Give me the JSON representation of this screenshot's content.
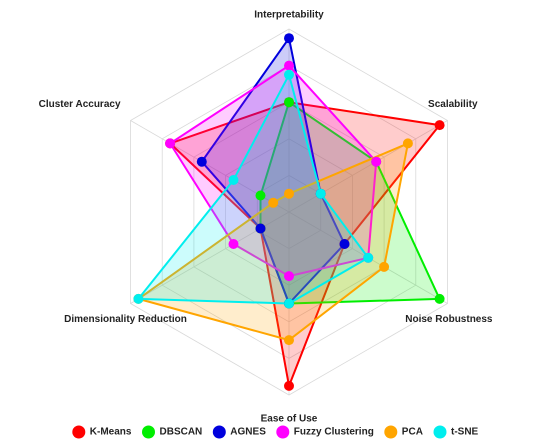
{
  "chart_data": {
    "type": "radar",
    "title": "",
    "axes": [
      "Interpretability",
      "Scalability",
      "Noise Robustness",
      "Ease of Use",
      "Dimensionality Reduction",
      "Cluster Accuracy"
    ],
    "range": [
      0,
      10
    ],
    "grid_rings": 5,
    "grid": true,
    "legend_position": "bottom",
    "series": [
      {
        "name": "K-Means",
        "color": "#ff0000",
        "values": [
          6.0,
          9.5,
          3.5,
          9.5,
          1.8,
          7.5
        ]
      },
      {
        "name": "DBSCAN",
        "color": "#00ee00",
        "values": [
          6.0,
          5.5,
          9.5,
          5.0,
          1.8,
          1.8
        ]
      },
      {
        "name": "AGNES",
        "color": "#0000dd",
        "values": [
          9.5,
          2.0,
          3.5,
          5.0,
          1.8,
          5.5
        ]
      },
      {
        "name": "Fuzzy Clustering",
        "color": "#ff00ff",
        "values": [
          8.0,
          5.5,
          5.0,
          3.5,
          3.5,
          7.5
        ]
      },
      {
        "name": "PCA",
        "color": "#ffa500",
        "values": [
          1.0,
          7.5,
          6.0,
          7.0,
          9.5,
          1.0
        ]
      },
      {
        "name": "t-SNE",
        "color": "#00eeee",
        "values": [
          7.5,
          2.0,
          5.0,
          5.0,
          9.5,
          3.5
        ]
      }
    ]
  }
}
